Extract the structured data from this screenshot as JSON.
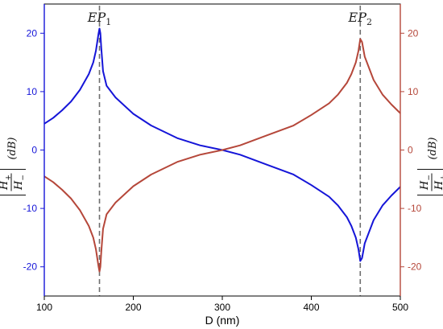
{
  "chart_data": {
    "type": "line",
    "xlabel": "D (nm)",
    "xlim": [
      100,
      500
    ],
    "x_ticks": [
      "100",
      "200",
      "300",
      "400",
      "500"
    ],
    "y_left": {
      "label": {
        "num": "H",
        "num_sub": "+",
        "den": "H",
        "den_sub": "−",
        "unit": "(dB)"
      },
      "lim": [
        -25,
        25
      ],
      "ticks": [
        "-20",
        "-10",
        "0",
        "10",
        "20"
      ],
      "color": "#1515d8"
    },
    "y_right": {
      "label": {
        "num": "H",
        "num_sub": "−",
        "den": "H",
        "den_sub": "+",
        "unit": "(dB)"
      },
      "lim": [
        -25,
        25
      ],
      "ticks": [
        "-20",
        "-10",
        "0",
        "10",
        "20"
      ],
      "color": "#b5473a"
    },
    "annotations": [
      {
        "text": "EP",
        "sub": "1",
        "x": 162
      },
      {
        "text": "EP",
        "sub": "2",
        "x": 455
      }
    ],
    "series": [
      {
        "axis": "left",
        "color": "#1515d8",
        "x": [
          100,
          110,
          120,
          130,
          140,
          150,
          155,
          158,
          160,
          161,
          162,
          163,
          164,
          166,
          170,
          180,
          200,
          220,
          250,
          275,
          300,
          320,
          350,
          380,
          400,
          420,
          430,
          440,
          445,
          450,
          453,
          455,
          457,
          460,
          470,
          480,
          490,
          500
        ],
        "values": [
          4.5,
          5.5,
          6.8,
          8.3,
          10.3,
          13.0,
          15.0,
          17.0,
          19.0,
          20.0,
          20.8,
          20.0,
          17.5,
          13.5,
          11.0,
          9.0,
          6.2,
          4.2,
          2.0,
          0.8,
          0.0,
          -0.8,
          -2.5,
          -4.2,
          -6.0,
          -8.0,
          -9.5,
          -11.5,
          -13.0,
          -15.0,
          -17.0,
          -19.0,
          -18.5,
          -16.0,
          -12.0,
          -9.5,
          -7.8,
          -6.3
        ]
      },
      {
        "axis": "right",
        "color": "#b5473a",
        "x": [
          100,
          110,
          120,
          130,
          140,
          150,
          155,
          158,
          160,
          161,
          162,
          163,
          164,
          166,
          170,
          180,
          200,
          220,
          250,
          275,
          300,
          320,
          350,
          380,
          400,
          420,
          430,
          440,
          445,
          450,
          453,
          455,
          457,
          460,
          470,
          480,
          490,
          500
        ],
        "values": [
          -4.5,
          -5.5,
          -6.8,
          -8.3,
          -10.3,
          -13.0,
          -15.0,
          -17.0,
          -19.0,
          -20.0,
          -20.8,
          -20.0,
          -17.5,
          -13.5,
          -11.0,
          -9.0,
          -6.2,
          -4.2,
          -2.0,
          -0.8,
          0.0,
          0.8,
          2.5,
          4.2,
          6.0,
          8.0,
          9.5,
          11.5,
          13.0,
          15.0,
          17.0,
          19.0,
          18.5,
          16.0,
          12.0,
          9.5,
          7.8,
          6.3
        ]
      }
    ],
    "reference_lines": {
      "x": [
        162,
        455
      ],
      "style": "dashed",
      "color": "#6e6e6e"
    },
    "grid": false
  }
}
